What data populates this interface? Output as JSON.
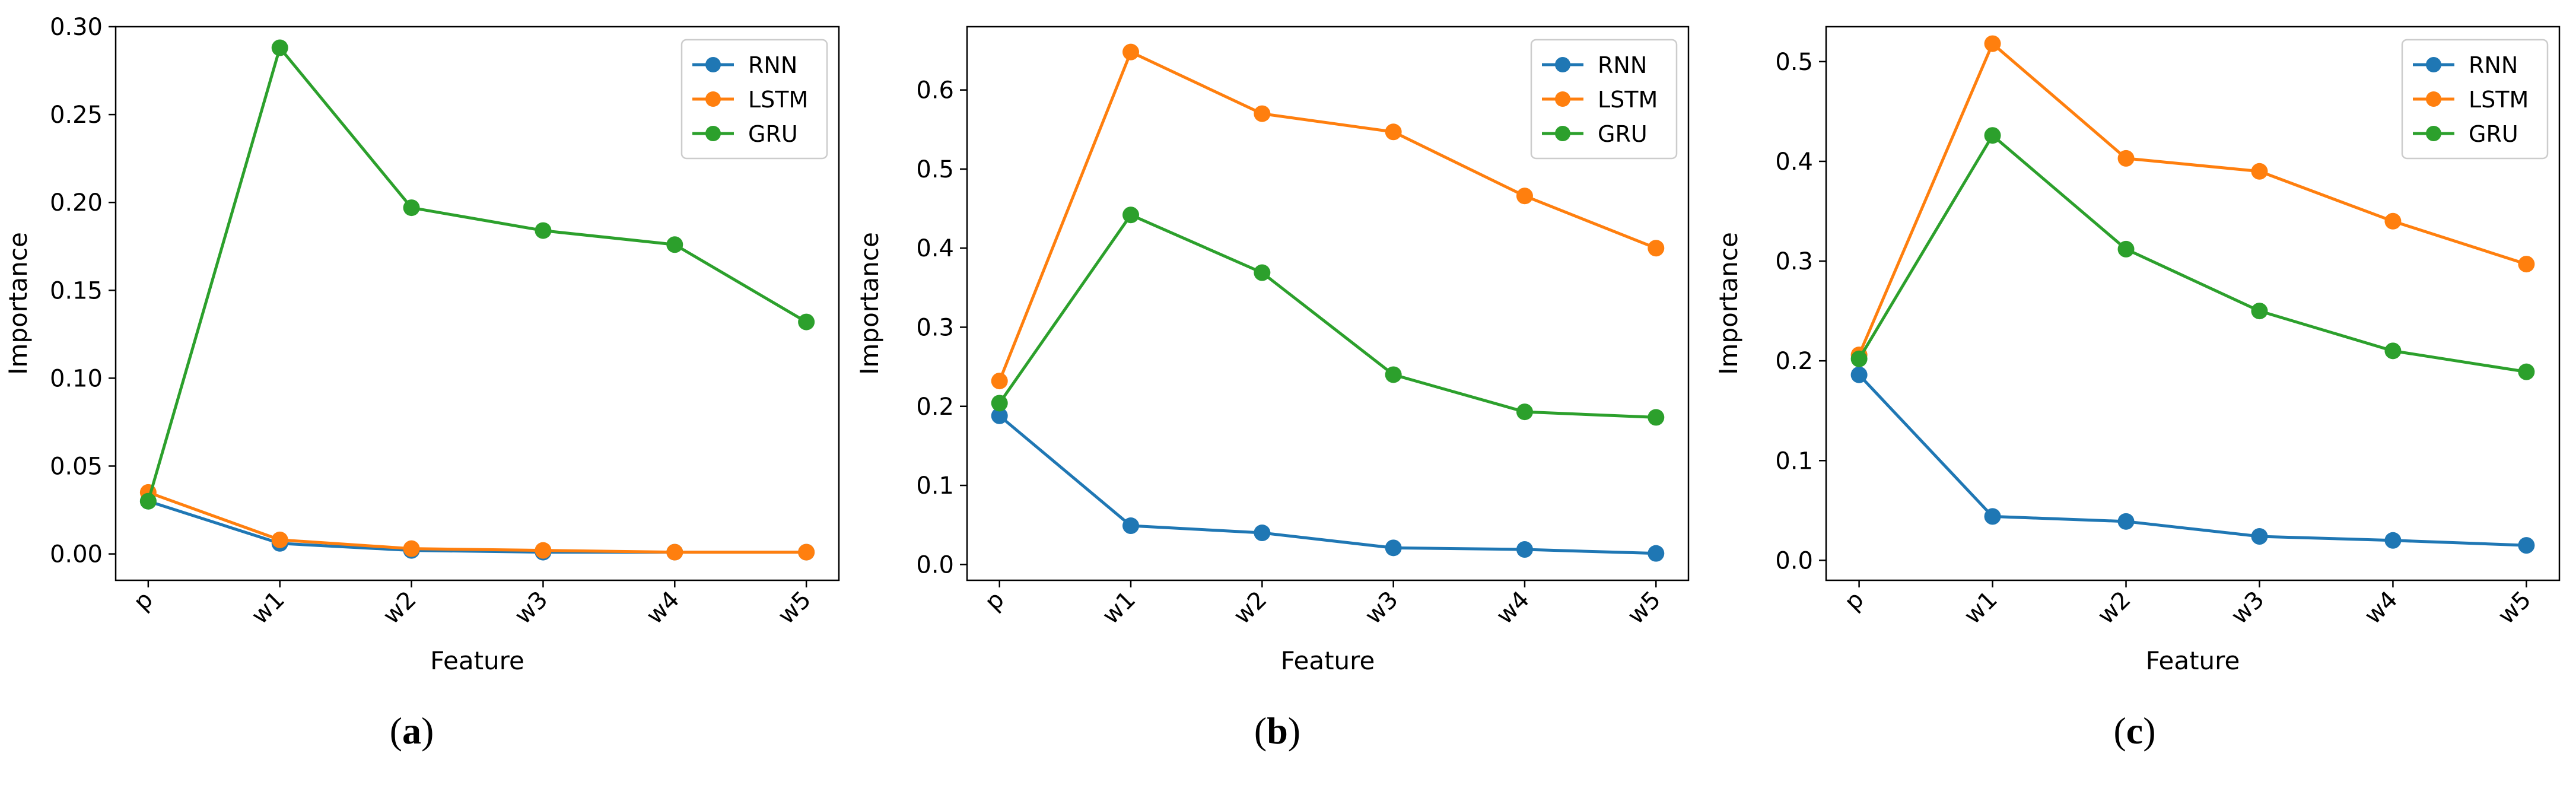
{
  "colors": {
    "RNN": "#1f77b4",
    "LSTM": "#ff7f0e",
    "GRU": "#2ca02c"
  },
  "chart_data": [
    {
      "type": "line",
      "panel_label": "a",
      "categories": [
        "p",
        "w1",
        "w2",
        "w3",
        "w4",
        "w5"
      ],
      "xlabel": "Feature",
      "ylabel": "Importance",
      "ylim": [
        -0.015,
        0.3
      ],
      "yticks": [
        0.0,
        0.05,
        0.1,
        0.15,
        0.2,
        0.25,
        0.3
      ],
      "ytick_labels": [
        "0.00",
        "0.05",
        "0.10",
        "0.15",
        "0.20",
        "0.25",
        "0.30"
      ],
      "legend": "top-right",
      "series": [
        {
          "name": "RNN",
          "values": [
            0.03,
            0.006,
            0.002,
            0.001,
            0.001,
            0.001
          ]
        },
        {
          "name": "LSTM",
          "values": [
            0.035,
            0.008,
            0.003,
            0.002,
            0.001,
            0.001
          ]
        },
        {
          "name": "GRU",
          "values": [
            0.03,
            0.288,
            0.197,
            0.184,
            0.176,
            0.132
          ]
        }
      ]
    },
    {
      "type": "line",
      "panel_label": "b",
      "categories": [
        "p",
        "w1",
        "w2",
        "w3",
        "w4",
        "w5"
      ],
      "xlabel": "Feature",
      "ylabel": "Importance",
      "ylim": [
        -0.02,
        0.68
      ],
      "yticks": [
        0.0,
        0.1,
        0.2,
        0.3,
        0.4,
        0.5,
        0.6
      ],
      "ytick_labels": [
        "0.0",
        "0.1",
        "0.2",
        "0.3",
        "0.4",
        "0.5",
        "0.6"
      ],
      "legend": "top-right",
      "series": [
        {
          "name": "RNN",
          "values": [
            0.188,
            0.049,
            0.04,
            0.021,
            0.019,
            0.014
          ]
        },
        {
          "name": "LSTM",
          "values": [
            0.232,
            0.648,
            0.57,
            0.547,
            0.466,
            0.4
          ]
        },
        {
          "name": "GRU",
          "values": [
            0.204,
            0.442,
            0.369,
            0.24,
            0.193,
            0.186
          ]
        }
      ]
    },
    {
      "type": "line",
      "panel_label": "c",
      "categories": [
        "p",
        "w1",
        "w2",
        "w3",
        "w4",
        "w5"
      ],
      "xlabel": "Feature",
      "ylabel": "Importance",
      "ylim": [
        -0.02,
        0.535
      ],
      "yticks": [
        0.0,
        0.1,
        0.2,
        0.3,
        0.4,
        0.5
      ],
      "ytick_labels": [
        "0.0",
        "0.1",
        "0.2",
        "0.3",
        "0.4",
        "0.5"
      ],
      "legend": "top-right",
      "series": [
        {
          "name": "RNN",
          "values": [
            0.186,
            0.044,
            0.039,
            0.024,
            0.02,
            0.015
          ]
        },
        {
          "name": "LSTM",
          "values": [
            0.206,
            0.518,
            0.403,
            0.39,
            0.34,
            0.297
          ]
        },
        {
          "name": "GRU",
          "values": [
            0.202,
            0.426,
            0.312,
            0.25,
            0.21,
            0.189
          ]
        }
      ]
    }
  ]
}
